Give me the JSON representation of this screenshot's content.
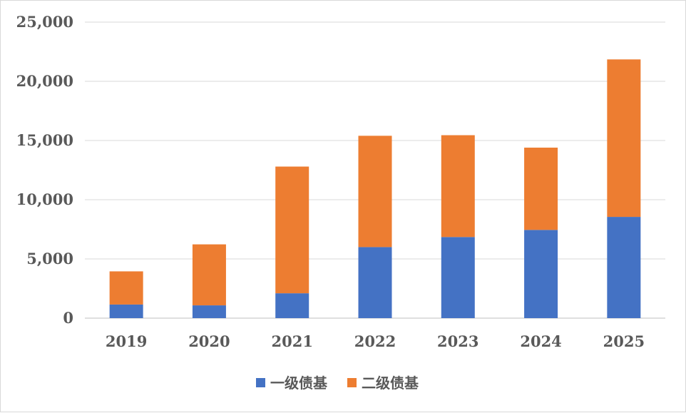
{
  "chart_data": {
    "type": "bar",
    "stacked": true,
    "categories": [
      "2019",
      "2020",
      "2021",
      "2022",
      "2023",
      "2024",
      "2025"
    ],
    "series": [
      {
        "name": "一级债基",
        "color": "#4472C4",
        "values": [
          1150,
          1080,
          2100,
          6000,
          6850,
          7450,
          8550
        ]
      },
      {
        "name": "二级债基",
        "color": "#ED7D31",
        "values": [
          2800,
          5150,
          10700,
          9400,
          8600,
          6950,
          13300
        ]
      }
    ],
    "yticks": [
      "0",
      "5,000",
      "10,000",
      "15,000",
      "20,000",
      "25,000"
    ],
    "ylim": [
      0,
      25000
    ],
    "grid": true,
    "legend": "bottom",
    "title": "",
    "xlabel": "",
    "ylabel": ""
  }
}
